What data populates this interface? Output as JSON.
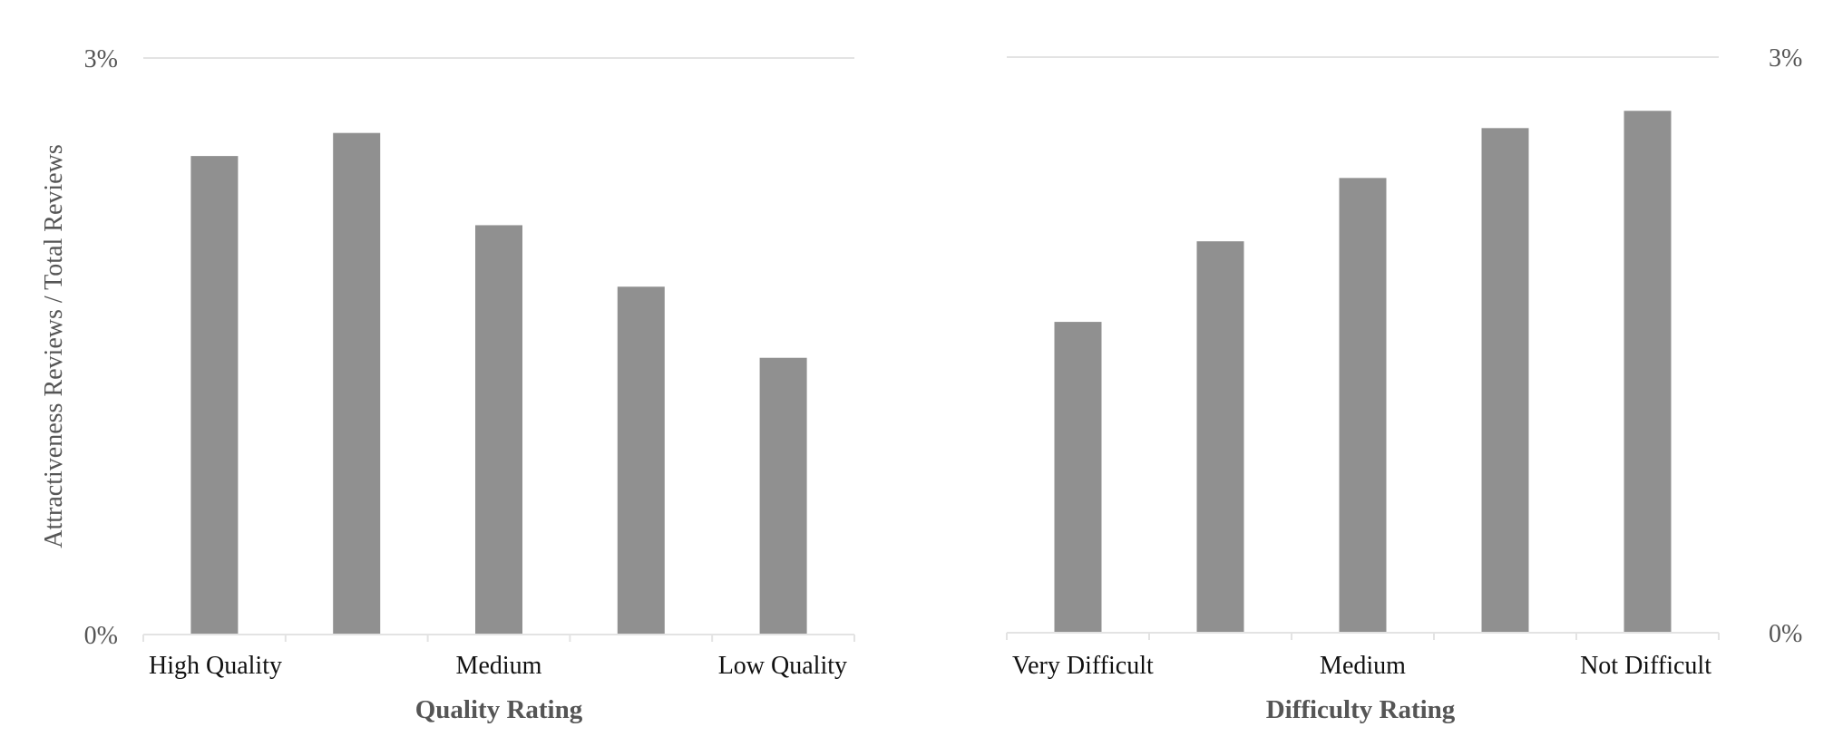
{
  "chart_data": [
    {
      "type": "bar",
      "title": "",
      "xlabel": "Quality Rating",
      "ylabel": "Attractiveness Reviews / Total Reviews",
      "categories": [
        "High Quality",
        "",
        "Medium",
        "",
        "Low Quality"
      ],
      "values": [
        2.49,
        2.61,
        2.13,
        1.81,
        1.44
      ],
      "ylim": [
        0,
        3
      ],
      "y_unit": "%",
      "y_ticks": [
        "0%",
        "3%"
      ],
      "y_axis_side": "left",
      "grid": true,
      "bar_color": "#909090",
      "legend": "none"
    },
    {
      "type": "bar",
      "title": "",
      "xlabel": "Difficulty Rating",
      "ylabel": "",
      "categories": [
        "Very Difficult",
        "",
        "Medium",
        "",
        "Not Difficult"
      ],
      "values": [
        1.62,
        2.04,
        2.37,
        2.63,
        2.72
      ],
      "ylim": [
        0,
        3
      ],
      "y_unit": "%",
      "y_ticks": [
        "0%",
        "3%"
      ],
      "y_axis_side": "right",
      "grid": true,
      "bar_color": "#909090",
      "legend": "none"
    }
  ]
}
